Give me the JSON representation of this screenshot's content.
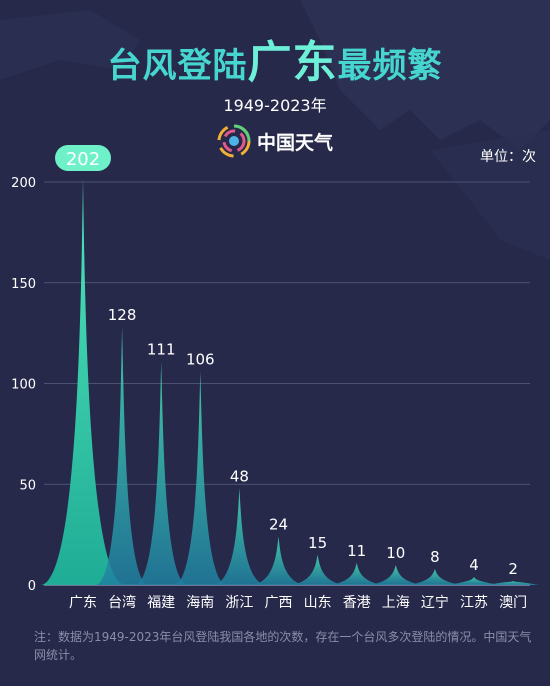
{
  "title": {
    "part1": "台风登陆",
    "part2": "广东",
    "part3": "最频繁"
  },
  "subtitle": "1949-2023年",
  "brand": {
    "name": "中国天气",
    "logo_icon": "china-weather-logo-icon"
  },
  "unit_label": "单位：次",
  "colors": {
    "background": "#26294a",
    "accent": "#46d6cf",
    "highlight": "#6ef0d8",
    "peak_top": "#46e0b8",
    "peak_base": "#1f7fa0"
  },
  "chart_data": {
    "type": "area",
    "categories": [
      "广东",
      "台湾",
      "福建",
      "海南",
      "浙江",
      "广西",
      "山东",
      "香港",
      "上海",
      "辽宁",
      "江苏",
      "澳门"
    ],
    "values": [
      202,
      128,
      111,
      106,
      48,
      24,
      15,
      11,
      10,
      8,
      4,
      2
    ],
    "title": "台风登陆广东最频繁",
    "subtitle": "1949-2023年",
    "xlabel": "",
    "ylabel": "",
    "ylim": [
      0,
      200
    ],
    "yticks": [
      0,
      50,
      100,
      150,
      200
    ],
    "grid": true,
    "highlight_label": "202"
  },
  "note": "注：数据为1949-2023年台风登陆我国各地的次数，存在一个台风多次登陆的情况。中国天气网统计。"
}
